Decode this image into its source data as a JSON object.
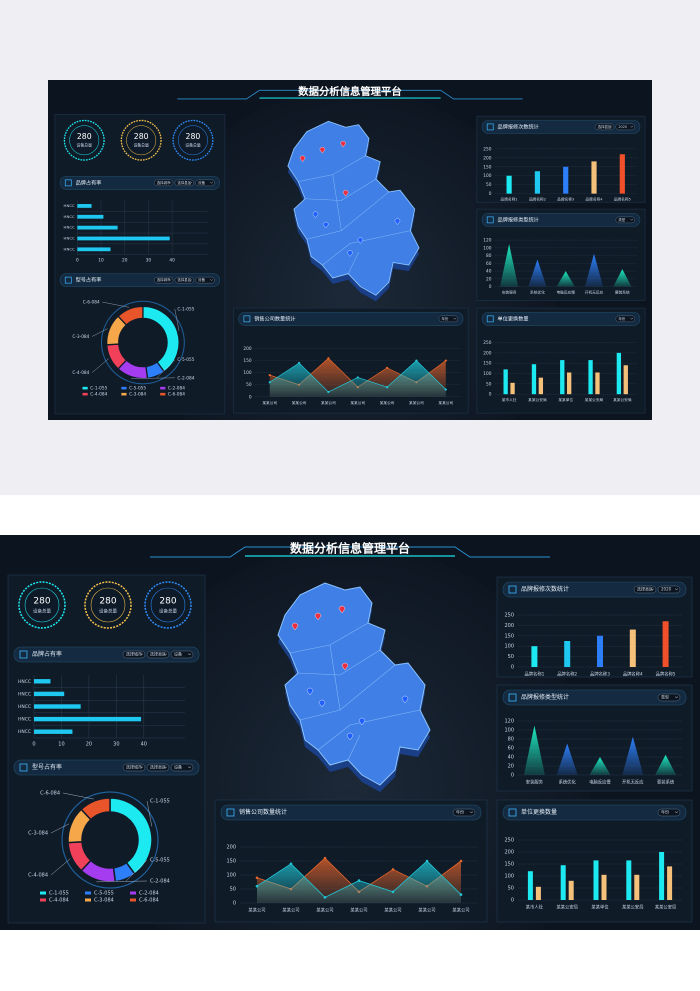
{
  "header": {
    "title": "数据分析信息管理平台"
  },
  "gauges": [
    {
      "value": 280,
      "label": "设备总量",
      "color": "#1de9f0"
    },
    {
      "value": 280,
      "label": "设备总量",
      "color": "#f5c04a"
    },
    {
      "value": 280,
      "label": "设备总量",
      "color": "#2d8cf9"
    }
  ],
  "chart_data": [
    {
      "type": "hbar",
      "panel_title": "品牌占有率",
      "selects": [
        "选择城市",
        "选择县区",
        "设备"
      ],
      "categories": [
        "HNCC",
        "HNCC",
        "HNCC",
        "HNCC",
        "HNCC"
      ],
      "values": [
        6,
        11,
        17,
        39,
        14
      ],
      "color": "#1fc8f0",
      "xlim": [
        0,
        55
      ],
      "xticks": [
        0,
        10,
        20,
        30,
        40
      ],
      "grid": true
    },
    {
      "type": "pie",
      "panel_title": "型号占有率",
      "selects": [
        "选择城市",
        "选择县区",
        "设备"
      ],
      "categories": [
        "C-1-055",
        "C-5-055",
        "C-2-084",
        "C-4-084",
        "C-3-084",
        "C-6-084"
      ],
      "values": [
        40,
        8,
        14,
        12,
        14,
        12
      ],
      "colors": [
        "#1de9f0",
        "#2d7ff9",
        "#a63cf0",
        "#f0405a",
        "#f5a74a",
        "#e8552a"
      ]
    },
    {
      "type": "area",
      "panel_title": "销售公司数量统计",
      "selects": [
        "年份"
      ],
      "categories": [
        "某某公司",
        "某某公司",
        "某某公司",
        "某某公司",
        "某某公司",
        "某某公司",
        "某某公司"
      ],
      "series": [
        {
          "color": "#e8652a",
          "values": [
            90,
            50,
            160,
            40,
            120,
            60,
            150
          ]
        },
        {
          "color": "#1fc8d8",
          "values": [
            60,
            140,
            20,
            80,
            40,
            150,
            30
          ]
        }
      ],
      "ylim": [
        0,
        200
      ],
      "yticks": [
        0,
        50,
        100,
        150,
        200
      ],
      "grid": true
    },
    {
      "type": "bar",
      "panel_title": "品牌报修次数统计",
      "selects": [
        "选择县区",
        "2020"
      ],
      "categories": [
        "品牌名称1",
        "品牌名称2",
        "品牌名称3",
        "品牌名称4",
        "品牌名称5"
      ],
      "values": [
        100,
        125,
        150,
        180,
        220
      ],
      "colors": [
        "#1de9f0",
        "#1fc8f0",
        "#2d7ff9",
        "#f5c07a",
        "#f0502a"
      ],
      "ylim": [
        0,
        250
      ],
      "yticks": [
        0,
        50,
        100,
        150,
        200,
        250
      ],
      "grid": true
    },
    {
      "type": "cone",
      "panel_title": "品牌报修类型统计",
      "selects": [
        "类型"
      ],
      "categories": [
        "安装服务",
        "系统优化",
        "电脑反应慢",
        "开机无反应",
        "要装系统"
      ],
      "values": [
        110,
        70,
        40,
        85,
        45
      ],
      "colors": [
        "#1de9c0",
        "#2d7ff9",
        "#1de9c0",
        "#2d7ff9",
        "#1de9c0"
      ],
      "ylim": [
        0,
        120
      ],
      "yticks": [
        0,
        20,
        40,
        60,
        80,
        100,
        120
      ],
      "grid": true
    },
    {
      "type": "grouped",
      "panel_title": "单位更换数量",
      "selects": [
        "年份"
      ],
      "categories": [
        "某市人社",
        "某某公安局",
        "某某单位",
        "某某公安局",
        "某某公安局"
      ],
      "series": [
        {
          "color": "#1de9f0",
          "values": [
            120,
            145,
            165,
            165,
            200
          ]
        },
        {
          "color": "#f5c07a",
          "values": [
            55,
            80,
            105,
            105,
            140
          ]
        }
      ],
      "ylim": [
        0,
        250
      ],
      "yticks": [
        0,
        50,
        100,
        150,
        200,
        250
      ],
      "grid": true
    }
  ]
}
